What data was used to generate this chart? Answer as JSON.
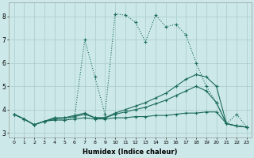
{
  "xlabel": "Humidex (Indice chaleur)",
  "bg_color": "#cce8e8",
  "grid_color": "#aacccc",
  "line_color": "#1a6b5a",
  "xlim": [
    -0.5,
    23.5
  ],
  "ylim": [
    2.8,
    8.6
  ],
  "yticks": [
    3,
    4,
    5,
    6,
    7,
    8
  ],
  "xticks": [
    0,
    1,
    2,
    3,
    4,
    5,
    6,
    7,
    8,
    9,
    10,
    11,
    12,
    13,
    14,
    15,
    16,
    17,
    18,
    19,
    20,
    21,
    22,
    23
  ],
  "line1_x": [
    0,
    1,
    2,
    3,
    4,
    5,
    6,
    7,
    8,
    9,
    10,
    11,
    12,
    13,
    14,
    15,
    16,
    17,
    18,
    19,
    20,
    21,
    22,
    23
  ],
  "line1_y": [
    3.8,
    3.6,
    3.35,
    3.5,
    3.55,
    3.55,
    3.6,
    3.65,
    3.6,
    3.6,
    3.65,
    3.65,
    3.7,
    3.7,
    3.75,
    3.75,
    3.8,
    3.85,
    3.85,
    3.9,
    3.9,
    3.4,
    3.3,
    3.25
  ],
  "line2_x": [
    0,
    1,
    2,
    3,
    4,
    5,
    6,
    7,
    8,
    9,
    10,
    11,
    12,
    13,
    14,
    15,
    16,
    17,
    18,
    19,
    20,
    21,
    22,
    23
  ],
  "line2_y": [
    3.8,
    3.6,
    3.35,
    3.5,
    3.6,
    3.65,
    3.7,
    3.8,
    3.65,
    3.65,
    3.8,
    3.9,
    4.0,
    4.1,
    4.25,
    4.4,
    4.6,
    4.8,
    5.0,
    4.8,
    4.3,
    3.4,
    3.3,
    3.25
  ],
  "line3_x": [
    0,
    1,
    2,
    3,
    4,
    5,
    6,
    7,
    8,
    9,
    10,
    11,
    12,
    13,
    14,
    15,
    16,
    17,
    18,
    19,
    20,
    21,
    22,
    23
  ],
  "line3_y": [
    3.8,
    3.6,
    3.35,
    3.5,
    3.65,
    3.65,
    3.75,
    3.85,
    3.65,
    3.65,
    3.85,
    4.0,
    4.15,
    4.3,
    4.5,
    4.7,
    5.0,
    5.3,
    5.5,
    5.4,
    5.0,
    3.4,
    3.3,
    3.25
  ],
  "line4_x": [
    0,
    1,
    2,
    3,
    4,
    5,
    6,
    7,
    8,
    9,
    10,
    11,
    12,
    13,
    14,
    15,
    16,
    17,
    18,
    19,
    20,
    21,
    22,
    23
  ],
  "line4_y": [
    3.8,
    3.6,
    3.35,
    3.5,
    3.65,
    3.55,
    3.7,
    7.0,
    5.4,
    3.8,
    8.1,
    8.05,
    7.75,
    6.9,
    8.05,
    7.55,
    7.65,
    7.2,
    6.0,
    5.0,
    4.3,
    3.4,
    3.8,
    3.25
  ]
}
